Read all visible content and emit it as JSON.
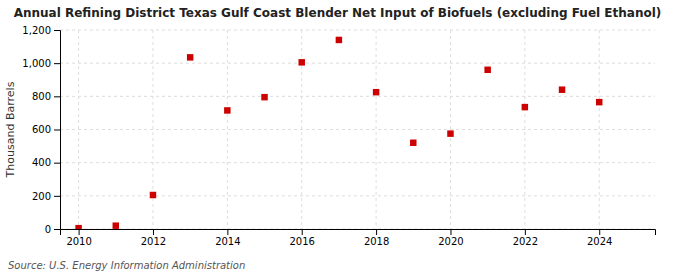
{
  "chart_data": {
    "type": "scatter",
    "title": "Annual Refining District Texas Gulf Coast Blender Net Input of Biofuels (excluding Fuel Ethanol)",
    "ylabel": "Thousand Barrels",
    "source": "Source: U.S. Energy Information Administration",
    "x": [
      2010,
      2011,
      2012,
      2013,
      2014,
      2015,
      2016,
      2017,
      2018,
      2019,
      2020,
      2021,
      2022,
      2023,
      2024
    ],
    "values": [
      5,
      20,
      205,
      1035,
      715,
      795,
      1005,
      1140,
      825,
      520,
      575,
      960,
      735,
      840,
      765
    ],
    "color": "#cc0000",
    "marker": "square",
    "xlim": [
      2009.5,
      2025.5
    ],
    "xticks": [
      2010,
      2012,
      2014,
      2016,
      2018,
      2020,
      2022,
      2024
    ],
    "ylim": [
      0,
      1200
    ],
    "yticks": [
      0,
      200,
      400,
      600,
      800,
      {
        "value": 1000,
        "label": "1,000"
      },
      {
        "value": 1200,
        "label": "1,200"
      }
    ],
    "grid": true
  }
}
